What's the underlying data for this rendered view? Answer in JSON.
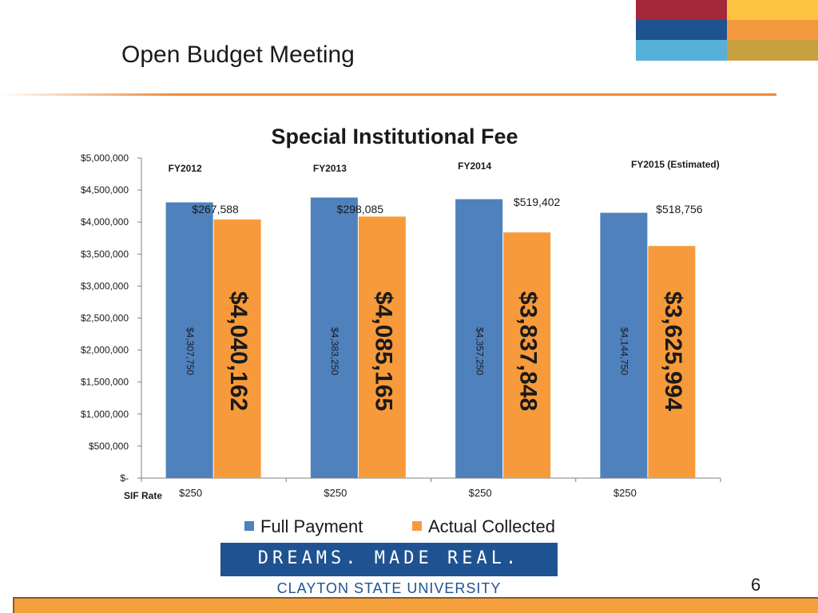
{
  "slide": {
    "title": "Open Budget Meeting",
    "page_number": "6",
    "banner": "DREAMS. MADE REAL.",
    "university": "CLAYTON STATE UNIVERSITY",
    "accent_colors": [
      "#a4283a",
      "#fcc440",
      "#1f5291",
      "#f39a3f",
      "#56b0d8",
      "#c8a040"
    ]
  },
  "legend": {
    "full_payment": "Full Payment",
    "actual_collected": "Actual Collected"
  },
  "chart_data": {
    "type": "bar",
    "title": "Special Institutional Fee",
    "categories": [
      "FY2012",
      "FY2013",
      "FY2014",
      "FY2015 (Estimated)"
    ],
    "series": [
      {
        "name": "Full Payment",
        "color": "#4f81bd",
        "values": [
          4307750,
          4383250,
          4357250,
          4144750
        ],
        "labels": [
          "$4,307,750",
          "$4,383,250",
          "$4,357,250",
          "$4,144,750"
        ]
      },
      {
        "name": "Actual Collected",
        "color": "#f79a3b",
        "values": [
          4040162,
          4085165,
          3837848,
          3625994
        ],
        "labels": [
          "$4,040,162",
          "$4,085,165",
          "$3,837,848",
          "$3,625,994"
        ]
      }
    ],
    "differences": [
      "$267,588",
      "$298,085",
      "$519,402",
      "$518,756"
    ],
    "sif_rate_label": "SIF Rate",
    "sif_rates": [
      "$250",
      "$250",
      "$250",
      "$250"
    ],
    "ylim": [
      0,
      5000000
    ],
    "yticks": [
      0,
      500000,
      1000000,
      1500000,
      2000000,
      2500000,
      3000000,
      3500000,
      4000000,
      4500000,
      5000000
    ],
    "ytick_labels": [
      "$-",
      "$500,000",
      "$1,000,000",
      "$1,500,000",
      "$2,000,000",
      "$2,500,000",
      "$3,000,000",
      "$3,500,000",
      "$4,000,000",
      "$4,500,000",
      "$5,000,000"
    ],
    "grid": false,
    "legend_position": "bottom"
  }
}
